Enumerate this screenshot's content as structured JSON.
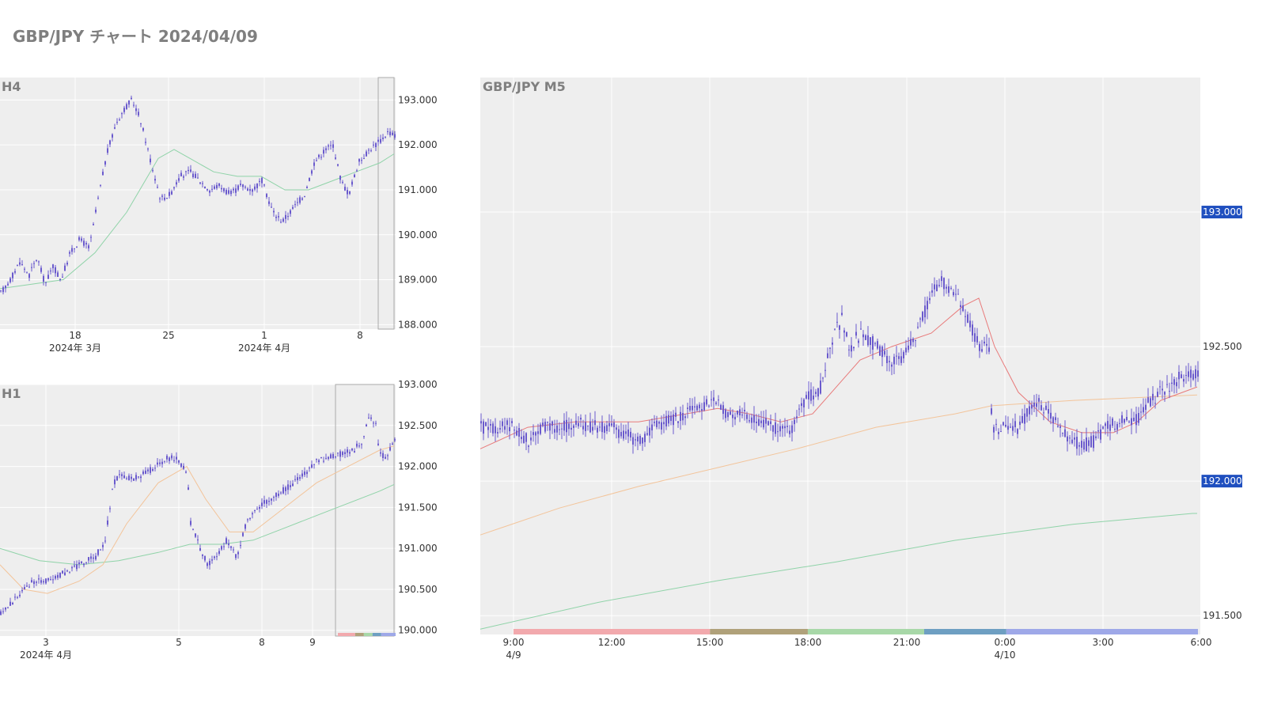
{
  "page": {
    "title": "GBP/JPY チャート 2024/04/09"
  },
  "colors": {
    "panel_bg": "#eeeeee",
    "candle": "#6a5acd",
    "ma_green": "#8fd3a8",
    "ma_orange": "#f3c49a",
    "ma_red": "#e87a7a",
    "price_tag": "#1f4fbf",
    "session_colors": [
      "#f2a9ad",
      "#b0a17a",
      "#a8d8a8",
      "#6e9fc2",
      "#9ea8e8"
    ]
  },
  "chart_data": [
    {
      "id": "h4",
      "type": "candlestick",
      "title": "H4",
      "y_ticks": [
        "193.000",
        "192.000",
        "191.000",
        "190.000",
        "189.000",
        "188.000"
      ],
      "ylim": [
        187.9,
        193.5
      ],
      "x_ticks": [
        {
          "label": "18",
          "sublabel": "2024年 3月"
        },
        {
          "label": "25",
          "sublabel": ""
        },
        {
          "label": "1",
          "sublabel": "2024年 4月"
        },
        {
          "label": "8",
          "sublabel": ""
        }
      ],
      "path_points": [
        [
          0,
          188.7
        ],
        [
          12,
          189.0
        ],
        [
          24,
          189.4
        ],
        [
          36,
          189.1
        ],
        [
          46,
          189.5
        ],
        [
          56,
          188.9
        ],
        [
          66,
          189.3
        ],
        [
          76,
          189.0
        ],
        [
          88,
          189.6
        ],
        [
          100,
          189.9
        ],
        [
          112,
          189.7
        ],
        [
          122,
          190.7
        ],
        [
          134,
          191.8
        ],
        [
          146,
          192.5
        ],
        [
          156,
          192.8
        ],
        [
          166,
          193.0
        ],
        [
          176,
          192.6
        ],
        [
          190,
          191.6
        ],
        [
          202,
          190.8
        ],
        [
          214,
          190.9
        ],
        [
          226,
          191.3
        ],
        [
          240,
          191.4
        ],
        [
          252,
          191.2
        ],
        [
          264,
          191.0
        ],
        [
          276,
          191.1
        ],
        [
          290,
          190.9
        ],
        [
          304,
          191.1
        ],
        [
          318,
          191.0
        ],
        [
          330,
          191.2
        ],
        [
          344,
          190.5
        ],
        [
          356,
          190.3
        ],
        [
          370,
          190.6
        ],
        [
          384,
          190.9
        ],
        [
          396,
          191.6
        ],
        [
          410,
          191.9
        ],
        [
          420,
          192.0
        ],
        [
          430,
          191.2
        ],
        [
          440,
          190.9
        ],
        [
          452,
          191.6
        ],
        [
          466,
          191.9
        ],
        [
          480,
          192.1
        ],
        [
          490,
          192.3
        ],
        [
          498,
          192.2
        ]
      ],
      "ma_series": [
        {
          "color_key": "ma_green",
          "points": [
            [
              0,
              188.8
            ],
            [
              40,
              188.9
            ],
            [
              80,
              189.0
            ],
            [
              120,
              189.6
            ],
            [
              160,
              190.5
            ],
            [
              200,
              191.7
            ],
            [
              220,
              191.9
            ],
            [
              240,
              191.7
            ],
            [
              270,
              191.4
            ],
            [
              300,
              191.3
            ],
            [
              330,
              191.3
            ],
            [
              360,
              191.0
            ],
            [
              390,
              191.0
            ],
            [
              420,
              191.2
            ],
            [
              450,
              191.4
            ],
            [
              480,
              191.6
            ],
            [
              498,
              191.8
            ]
          ]
        }
      ],
      "highlight_range": [
        478,
        498
      ]
    },
    {
      "id": "h1",
      "type": "candlestick",
      "title": "H1",
      "y_ticks": [
        "193.000",
        "192.500",
        "192.000",
        "191.500",
        "191.000",
        "190.500",
        "190.000"
      ],
      "ylim": [
        189.93,
        193.0
      ],
      "x_ticks": [
        {
          "label": "3",
          "sublabel": "2024年 4月"
        },
        {
          "label": "5",
          "sublabel": ""
        },
        {
          "label": "8",
          "sublabel": ""
        },
        {
          "label": "9",
          "sublabel": ""
        }
      ],
      "path_points": [
        [
          0,
          190.2
        ],
        [
          20,
          190.4
        ],
        [
          40,
          190.6
        ],
        [
          60,
          190.6
        ],
        [
          80,
          190.7
        ],
        [
          100,
          190.8
        ],
        [
          120,
          190.9
        ],
        [
          132,
          191.1
        ],
        [
          142,
          191.8
        ],
        [
          152,
          191.9
        ],
        [
          166,
          191.85
        ],
        [
          180,
          191.9
        ],
        [
          196,
          192.0
        ],
        [
          210,
          192.1
        ],
        [
          224,
          192.1
        ],
        [
          236,
          191.9
        ],
        [
          240,
          191.3
        ],
        [
          252,
          191.0
        ],
        [
          262,
          190.8
        ],
        [
          272,
          190.9
        ],
        [
          286,
          191.1
        ],
        [
          298,
          190.9
        ],
        [
          310,
          191.3
        ],
        [
          324,
          191.5
        ],
        [
          340,
          191.6
        ],
        [
          356,
          191.7
        ],
        [
          370,
          191.8
        ],
        [
          384,
          191.9
        ],
        [
          398,
          192.05
        ],
        [
          412,
          192.1
        ],
        [
          428,
          192.15
        ],
        [
          446,
          192.2
        ],
        [
          456,
          192.3
        ],
        [
          466,
          192.6
        ],
        [
          474,
          192.5
        ],
        [
          478,
          192.2
        ],
        [
          486,
          192.1
        ],
        [
          498,
          192.3
        ]
      ],
      "ma_series": [
        {
          "color_key": "ma_green",
          "points": [
            [
              0,
              191.0
            ],
            [
              50,
              190.85
            ],
            [
              100,
              190.8
            ],
            [
              150,
              190.85
            ],
            [
              200,
              190.95
            ],
            [
              240,
              191.05
            ],
            [
              280,
              191.05
            ],
            [
              320,
              191.1
            ],
            [
              360,
              191.25
            ],
            [
              400,
              191.4
            ],
            [
              440,
              191.55
            ],
            [
              480,
              191.7
            ],
            [
              498,
              191.78
            ]
          ]
        },
        {
          "color_key": "ma_orange",
          "points": [
            [
              0,
              190.8
            ],
            [
              30,
              190.5
            ],
            [
              60,
              190.45
            ],
            [
              100,
              190.6
            ],
            [
              130,
              190.8
            ],
            [
              160,
              191.3
            ],
            [
              200,
              191.8
            ],
            [
              236,
              192.0
            ],
            [
              260,
              191.6
            ],
            [
              290,
              191.2
            ],
            [
              320,
              191.2
            ],
            [
              360,
              191.5
            ],
            [
              400,
              191.8
            ],
            [
              440,
              192.0
            ],
            [
              480,
              192.2
            ],
            [
              498,
              192.25
            ]
          ]
        }
      ],
      "highlight_range": [
        424,
        498
      ],
      "session_strip": true
    },
    {
      "id": "m5",
      "type": "candlestick",
      "title": "GBP/JPY M5",
      "y_ticks": [
        "193.000",
        "192.500",
        "192.000",
        "191.500"
      ],
      "ylim": [
        191.43,
        193.5
      ],
      "price_tags": [
        "193.000",
        "192.000"
      ],
      "x_ticks": [
        {
          "label": "9:00",
          "sublabel": "4/9"
        },
        {
          "label": "12:00",
          "sublabel": ""
        },
        {
          "label": "15:00",
          "sublabel": ""
        },
        {
          "label": "18:00",
          "sublabel": ""
        },
        {
          "label": "21:00",
          "sublabel": ""
        },
        {
          "label": "0:00",
          "sublabel": "4/10"
        },
        {
          "label": "3:00",
          "sublabel": ""
        },
        {
          "label": "6:00",
          "sublabel": ""
        }
      ],
      "path_points": [
        [
          0,
          192.2
        ],
        [
          20,
          192.2
        ],
        [
          40,
          192.2
        ],
        [
          60,
          192.15
        ],
        [
          80,
          192.2
        ],
        [
          100,
          192.2
        ],
        [
          120,
          192.22
        ],
        [
          140,
          192.2
        ],
        [
          160,
          192.2
        ],
        [
          180,
          192.18
        ],
        [
          200,
          192.15
        ],
        [
          220,
          192.2
        ],
        [
          240,
          192.23
        ],
        [
          260,
          192.25
        ],
        [
          280,
          192.27
        ],
        [
          296,
          192.3
        ],
        [
          310,
          192.25
        ],
        [
          330,
          192.25
        ],
        [
          350,
          192.22
        ],
        [
          370,
          192.2
        ],
        [
          390,
          192.18
        ],
        [
          410,
          192.3
        ],
        [
          430,
          192.35
        ],
        [
          446,
          192.55
        ],
        [
          456,
          192.6
        ],
        [
          466,
          192.5
        ],
        [
          480,
          192.55
        ],
        [
          500,
          192.5
        ],
        [
          516,
          192.45
        ],
        [
          530,
          192.45
        ],
        [
          550,
          192.55
        ],
        [
          564,
          192.65
        ],
        [
          580,
          192.75
        ],
        [
          600,
          192.7
        ],
        [
          614,
          192.6
        ],
        [
          630,
          192.5
        ],
        [
          642,
          192.5
        ],
        [
          646,
          192.2
        ],
        [
          660,
          192.2
        ],
        [
          680,
          192.2
        ],
        [
          700,
          192.3
        ],
        [
          716,
          192.25
        ],
        [
          730,
          192.2
        ],
        [
          746,
          192.15
        ],
        [
          760,
          192.13
        ],
        [
          776,
          192.15
        ],
        [
          790,
          192.2
        ],
        [
          810,
          192.22
        ],
        [
          830,
          192.23
        ],
        [
          846,
          192.3
        ],
        [
          866,
          192.35
        ],
        [
          890,
          192.4
        ],
        [
          906,
          192.4
        ]
      ],
      "ma_series": [
        {
          "color_key": "ma_green",
          "points": [
            [
              0,
              191.45
            ],
            [
              150,
              191.55
            ],
            [
              300,
              191.63
            ],
            [
              450,
              191.7
            ],
            [
              600,
              191.78
            ],
            [
              750,
              191.84
            ],
            [
              900,
              191.88
            ],
            [
              906,
              191.88
            ]
          ]
        },
        {
          "color_key": "ma_orange",
          "points": [
            [
              0,
              191.8
            ],
            [
              100,
              191.9
            ],
            [
              200,
              191.98
            ],
            [
              300,
              192.05
            ],
            [
              400,
              192.12
            ],
            [
              500,
              192.2
            ],
            [
              600,
              192.25
            ],
            [
              646,
              192.28
            ],
            [
              750,
              192.3
            ],
            [
              906,
              192.32
            ]
          ]
        },
        {
          "color_key": "ma_red",
          "points": [
            [
              0,
              192.12
            ],
            [
              60,
              192.2
            ],
            [
              120,
              192.22
            ],
            [
              200,
              192.22
            ],
            [
              260,
              192.25
            ],
            [
              300,
              192.27
            ],
            [
              340,
              192.25
            ],
            [
              380,
              192.22
            ],
            [
              420,
              192.25
            ],
            [
              450,
              192.35
            ],
            [
              480,
              192.45
            ],
            [
              520,
              192.5
            ],
            [
              570,
              192.55
            ],
            [
              610,
              192.65
            ],
            [
              630,
              192.68
            ],
            [
              650,
              192.5
            ],
            [
              680,
              192.33
            ],
            [
              720,
              192.22
            ],
            [
              760,
              192.18
            ],
            [
              800,
              192.18
            ],
            [
              830,
              192.22
            ],
            [
              860,
              192.3
            ],
            [
              906,
              192.35
            ]
          ]
        }
      ],
      "session_strip": true
    }
  ]
}
